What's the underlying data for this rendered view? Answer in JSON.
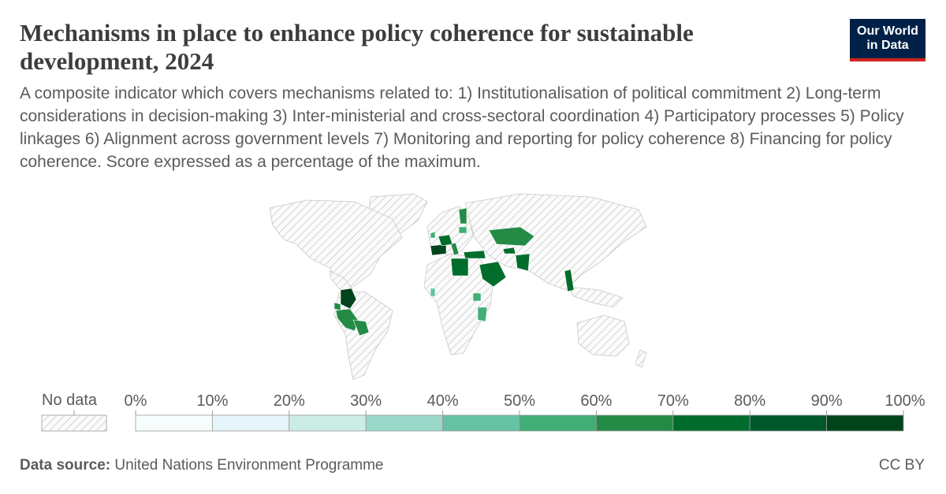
{
  "header": {
    "title": "Mechanisms in place to enhance policy coherence for sustainable development, 2024",
    "subtitle": "A composite indicator which covers mechanisms related to: 1) Institutionalisation of political commitment 2) Long-term considerations in decision-making 3) Inter-ministerial and cross-sectoral coordination 4) Participatory processes 5) Policy linkages 6) Alignment across government levels 7) Monitoring and reporting for policy coherence 8) Financing for policy coherence. Score expressed as a percentage of the maximum."
  },
  "logo": {
    "line1": "Our World",
    "line2": "in Data",
    "bg_color": "#002147",
    "accent_color": "#ce261e"
  },
  "legend": {
    "no_data_label": "No data",
    "bins": [
      {
        "label": "0%",
        "color": "#f7fcfd"
      },
      {
        "label": "10%",
        "color": "#e5f5f9"
      },
      {
        "label": "20%",
        "color": "#ccece6"
      },
      {
        "label": "30%",
        "color": "#99d8c9"
      },
      {
        "label": "40%",
        "color": "#66c2a4"
      },
      {
        "label": "50%",
        "color": "#41ae76"
      },
      {
        "label": "60%",
        "color": "#238b45"
      },
      {
        "label": "70%",
        "color": "#006d2c"
      },
      {
        "label": "80%",
        "color": "#00582a"
      },
      {
        "label": "90%",
        "color": "#00441b"
      }
    ],
    "end_label": "100%"
  },
  "footer": {
    "source_label": "Data source:",
    "source_text": "United Nations Environment Programme",
    "license": "CC BY"
  }
}
